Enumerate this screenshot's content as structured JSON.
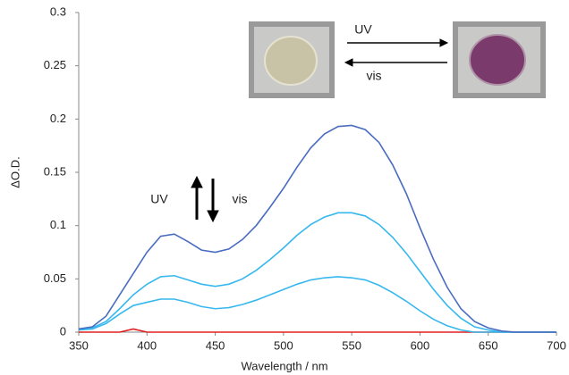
{
  "chart_data": {
    "type": "line",
    "xlabel": "Wavelength / nm",
    "ylabel": "ΔO.D.",
    "annotations": [
      "UV",
      "vis",
      "UV",
      "vis"
    ],
    "x": [
      350,
      360,
      370,
      380,
      390,
      400,
      410,
      420,
      430,
      440,
      450,
      460,
      470,
      480,
      490,
      500,
      510,
      520,
      530,
      540,
      550,
      560,
      570,
      580,
      590,
      600,
      610,
      620,
      630,
      640,
      650,
      660,
      670,
      680,
      690,
      700
    ],
    "series": [
      {
        "color": "#4a6cc0",
        "values": [
          0.003,
          0.005,
          0.015,
          0.035,
          0.055,
          0.075,
          0.09,
          0.092,
          0.085,
          0.077,
          0.075,
          0.078,
          0.087,
          0.1,
          0.117,
          0.135,
          0.155,
          0.173,
          0.186,
          0.193,
          0.194,
          0.19,
          0.178,
          0.157,
          0.13,
          0.098,
          0.068,
          0.042,
          0.022,
          0.01,
          0.004,
          0.001,
          0,
          0,
          0,
          0
        ]
      },
      {
        "color": "#36b8ee",
        "values": [
          0.003,
          0.004,
          0.01,
          0.022,
          0.035,
          0.045,
          0.052,
          0.053,
          0.049,
          0.045,
          0.043,
          0.045,
          0.05,
          0.058,
          0.068,
          0.079,
          0.091,
          0.101,
          0.108,
          0.112,
          0.112,
          0.109,
          0.101,
          0.089,
          0.074,
          0.057,
          0.04,
          0.025,
          0.013,
          0.005,
          0.002,
          0,
          0,
          0,
          0,
          0
        ]
      },
      {
        "color": "#36b8ee",
        "values": [
          0.002,
          0.003,
          0.008,
          0.017,
          0.025,
          0.028,
          0.031,
          0.031,
          0.028,
          0.024,
          0.022,
          0.023,
          0.026,
          0.03,
          0.035,
          0.04,
          0.045,
          0.049,
          0.051,
          0.052,
          0.051,
          0.049,
          0.044,
          0.037,
          0.029,
          0.02,
          0.012,
          0.006,
          0.002,
          0,
          0,
          0,
          0,
          0,
          0,
          0
        ]
      },
      {
        "color": "#e02020",
        "values": [
          0,
          0,
          0,
          0,
          0.003,
          0,
          0,
          0,
          0,
          0,
          0,
          0,
          0,
          0,
          0,
          0,
          0,
          0,
          0,
          0,
          0,
          0,
          0,
          0,
          0,
          0,
          0,
          0,
          0,
          0,
          0,
          0,
          0,
          0,
          0,
          0
        ]
      }
    ],
    "xlim": [
      350,
      700
    ],
    "xticks": [
      350,
      400,
      450,
      500,
      550,
      600,
      650,
      700
    ],
    "ylim": [
      0,
      0.3
    ],
    "yticks": [
      0,
      0.05,
      0.1,
      0.15,
      0.2,
      0.25,
      0.3
    ]
  }
}
